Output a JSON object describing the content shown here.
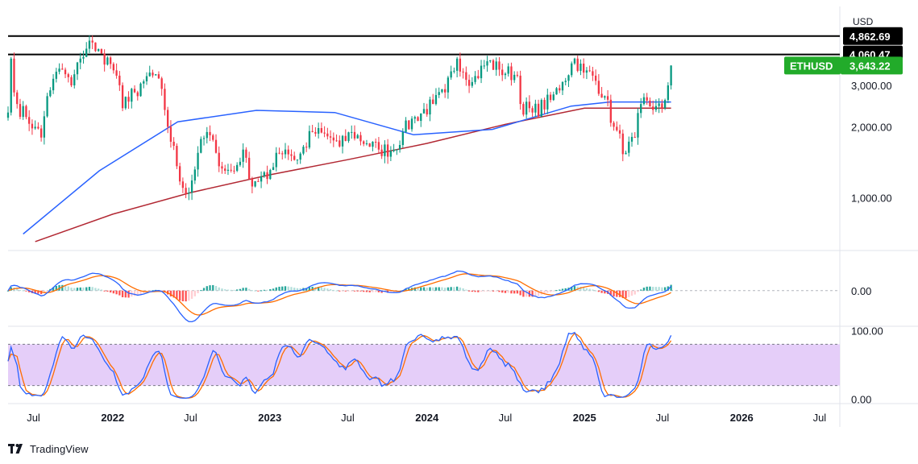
{
  "branding": {
    "name": "TradingView",
    "logo_icon": "tradingview-logo-icon"
  },
  "chart_data": {
    "type": "candlestick",
    "symbol": "ETHUSD",
    "currency": "USD",
    "last_price": 3643.22,
    "last_price_label": "3,643.22",
    "y_scale": "log",
    "ylim": [
      600,
      6500
    ],
    "y_ticks": [
      {
        "value": 1000,
        "label": "1,000.00"
      },
      {
        "value": 2000,
        "label": "2,000.00"
      },
      {
        "value": 3000,
        "label": "3,000.00"
      }
    ],
    "horizontal_lines": [
      {
        "value": 4862.69,
        "label": "4,862.69",
        "color": "#000000"
      },
      {
        "value": 4060.47,
        "label": "4,060.47",
        "color": "#000000"
      }
    ],
    "x_range": [
      "2021-05-03",
      "2026-08-17"
    ],
    "x_ticks": [
      {
        "date": "2021-07-01",
        "label": "Jul"
      },
      {
        "date": "2022-01-01",
        "label": "2022"
      },
      {
        "date": "2022-07-01",
        "label": "Jul"
      },
      {
        "date": "2023-01-01",
        "label": "2023"
      },
      {
        "date": "2023-07-01",
        "label": "Jul"
      },
      {
        "date": "2024-01-01",
        "label": "2024"
      },
      {
        "date": "2024-07-01",
        "label": "Jul"
      },
      {
        "date": "2025-01-01",
        "label": "2025"
      },
      {
        "date": "2025-07-01",
        "label": "Jul"
      },
      {
        "date": "2026-01-01",
        "label": "2026"
      },
      {
        "date": "2026-07-01",
        "label": "Jul"
      }
    ],
    "colors": {
      "up": "#089981",
      "down": "#f23645",
      "ma_fast": "#2962ff",
      "ma_slow": "#b22833",
      "macd_line": "#2962ff",
      "signal_line": "#ff6d00",
      "hist_up_strong": "#26a69a",
      "hist_up_weak": "#b2dfdb",
      "hist_down_strong": "#ff5252",
      "hist_down_weak": "#ffcdd2",
      "stoch_k": "#2962ff",
      "stoch_d": "#ff6d00",
      "stoch_band": "#e1c6f8",
      "last_price_badge": "#22ab2a"
    },
    "weekly_close_anchors": [
      [
        "2021-05-03",
        2300
      ],
      [
        "2021-05-10",
        3900
      ],
      [
        "2021-05-17",
        2800
      ],
      [
        "2021-05-24",
        2500
      ],
      [
        "2021-06-14",
        2200
      ],
      [
        "2021-07-05",
        2000
      ],
      [
        "2021-07-19",
        1800
      ],
      [
        "2021-08-02",
        2700
      ],
      [
        "2021-08-16",
        3200
      ],
      [
        "2021-09-06",
        3500
      ],
      [
        "2021-09-27",
        3000
      ],
      [
        "2021-10-18",
        3900
      ],
      [
        "2021-11-08",
        4650
      ],
      [
        "2021-11-22",
        4200
      ],
      [
        "2021-12-06",
        4100
      ],
      [
        "2021-12-27",
        3700
      ],
      [
        "2022-01-10",
        3300
      ],
      [
        "2022-01-24",
        2400
      ],
      [
        "2022-02-14",
        2900
      ],
      [
        "2022-02-28",
        2700
      ],
      [
        "2022-03-28",
        3400
      ],
      [
        "2022-04-25",
        2900
      ],
      [
        "2022-05-09",
        2000
      ],
      [
        "2022-06-13",
        1100
      ],
      [
        "2022-06-27",
        1050
      ],
      [
        "2022-07-18",
        1550
      ],
      [
        "2022-08-08",
        1900
      ],
      [
        "2022-08-29",
        1550
      ],
      [
        "2022-09-19",
        1300
      ],
      [
        "2022-10-10",
        1300
      ],
      [
        "2022-10-31",
        1600
      ],
      [
        "2022-11-14",
        1200
      ],
      [
        "2022-12-26",
        1200
      ],
      [
        "2023-01-16",
        1550
      ],
      [
        "2023-02-06",
        1600
      ],
      [
        "2023-03-06",
        1450
      ],
      [
        "2023-04-10",
        1900
      ],
      [
        "2023-05-22",
        1800
      ],
      [
        "2023-06-12",
        1650
      ],
      [
        "2023-07-10",
        1900
      ],
      [
        "2023-08-14",
        1700
      ],
      [
        "2023-09-11",
        1600
      ],
      [
        "2023-10-16",
        1600
      ],
      [
        "2023-11-06",
        1900
      ],
      [
        "2023-12-04",
        2200
      ],
      [
        "2024-01-15",
        2500
      ],
      [
        "2024-02-12",
        2800
      ],
      [
        "2024-03-11",
        3900
      ],
      [
        "2024-04-15",
        3100
      ],
      [
        "2024-05-20",
        3800
      ],
      [
        "2024-06-17",
        3500
      ],
      [
        "2024-07-29",
        3300
      ],
      [
        "2024-08-05",
        2500
      ],
      [
        "2024-09-02",
        2300
      ],
      [
        "2024-10-14",
        2600
      ],
      [
        "2024-11-11",
        3100
      ],
      [
        "2024-12-09",
        3900
      ],
      [
        "2024-12-30",
        3400
      ],
      [
        "2025-01-20",
        3300
      ],
      [
        "2025-02-17",
        2700
      ],
      [
        "2025-03-10",
        2000
      ],
      [
        "2025-04-07",
        1550
      ],
      [
        "2025-04-28",
        1800
      ],
      [
        "2025-05-12",
        2500
      ],
      [
        "2025-06-16",
        2450
      ],
      [
        "2025-06-30",
        2400
      ],
      [
        "2025-07-07",
        2600
      ],
      [
        "2025-07-14",
        3000
      ],
      [
        "2025-07-21",
        3643.22
      ]
    ],
    "moving_averages": [
      {
        "name": "fast",
        "anchors": [
          [
            "2021-06-07",
            700
          ],
          [
            "2021-12-01",
            1300
          ],
          [
            "2022-06-01",
            2100
          ],
          [
            "2022-12-01",
            2350
          ],
          [
            "2023-06-01",
            2300
          ],
          [
            "2023-12-01",
            1850
          ],
          [
            "2024-06-01",
            1950
          ],
          [
            "2024-12-01",
            2450
          ],
          [
            "2025-03-01",
            2550
          ],
          [
            "2025-07-21",
            2550
          ]
        ]
      },
      {
        "name": "slow",
        "anchors": [
          [
            "2021-07-05",
            650
          ],
          [
            "2022-01-01",
            850
          ],
          [
            "2022-07-01",
            1050
          ],
          [
            "2023-01-01",
            1250
          ],
          [
            "2023-07-01",
            1450
          ],
          [
            "2024-01-01",
            1700
          ],
          [
            "2024-07-01",
            2050
          ],
          [
            "2025-01-01",
            2400
          ],
          [
            "2025-07-21",
            2400
          ]
        ]
      }
    ],
    "macd": {
      "zero_label": "0.00",
      "ylim": [
        -1,
        1
      ]
    },
    "stochastic": {
      "upper": 80,
      "lower": 20,
      "ylim": [
        -5,
        105
      ],
      "ticks": [
        {
          "value": 100,
          "label": "100.00"
        },
        {
          "value": 0,
          "label": "0.00"
        }
      ]
    }
  }
}
